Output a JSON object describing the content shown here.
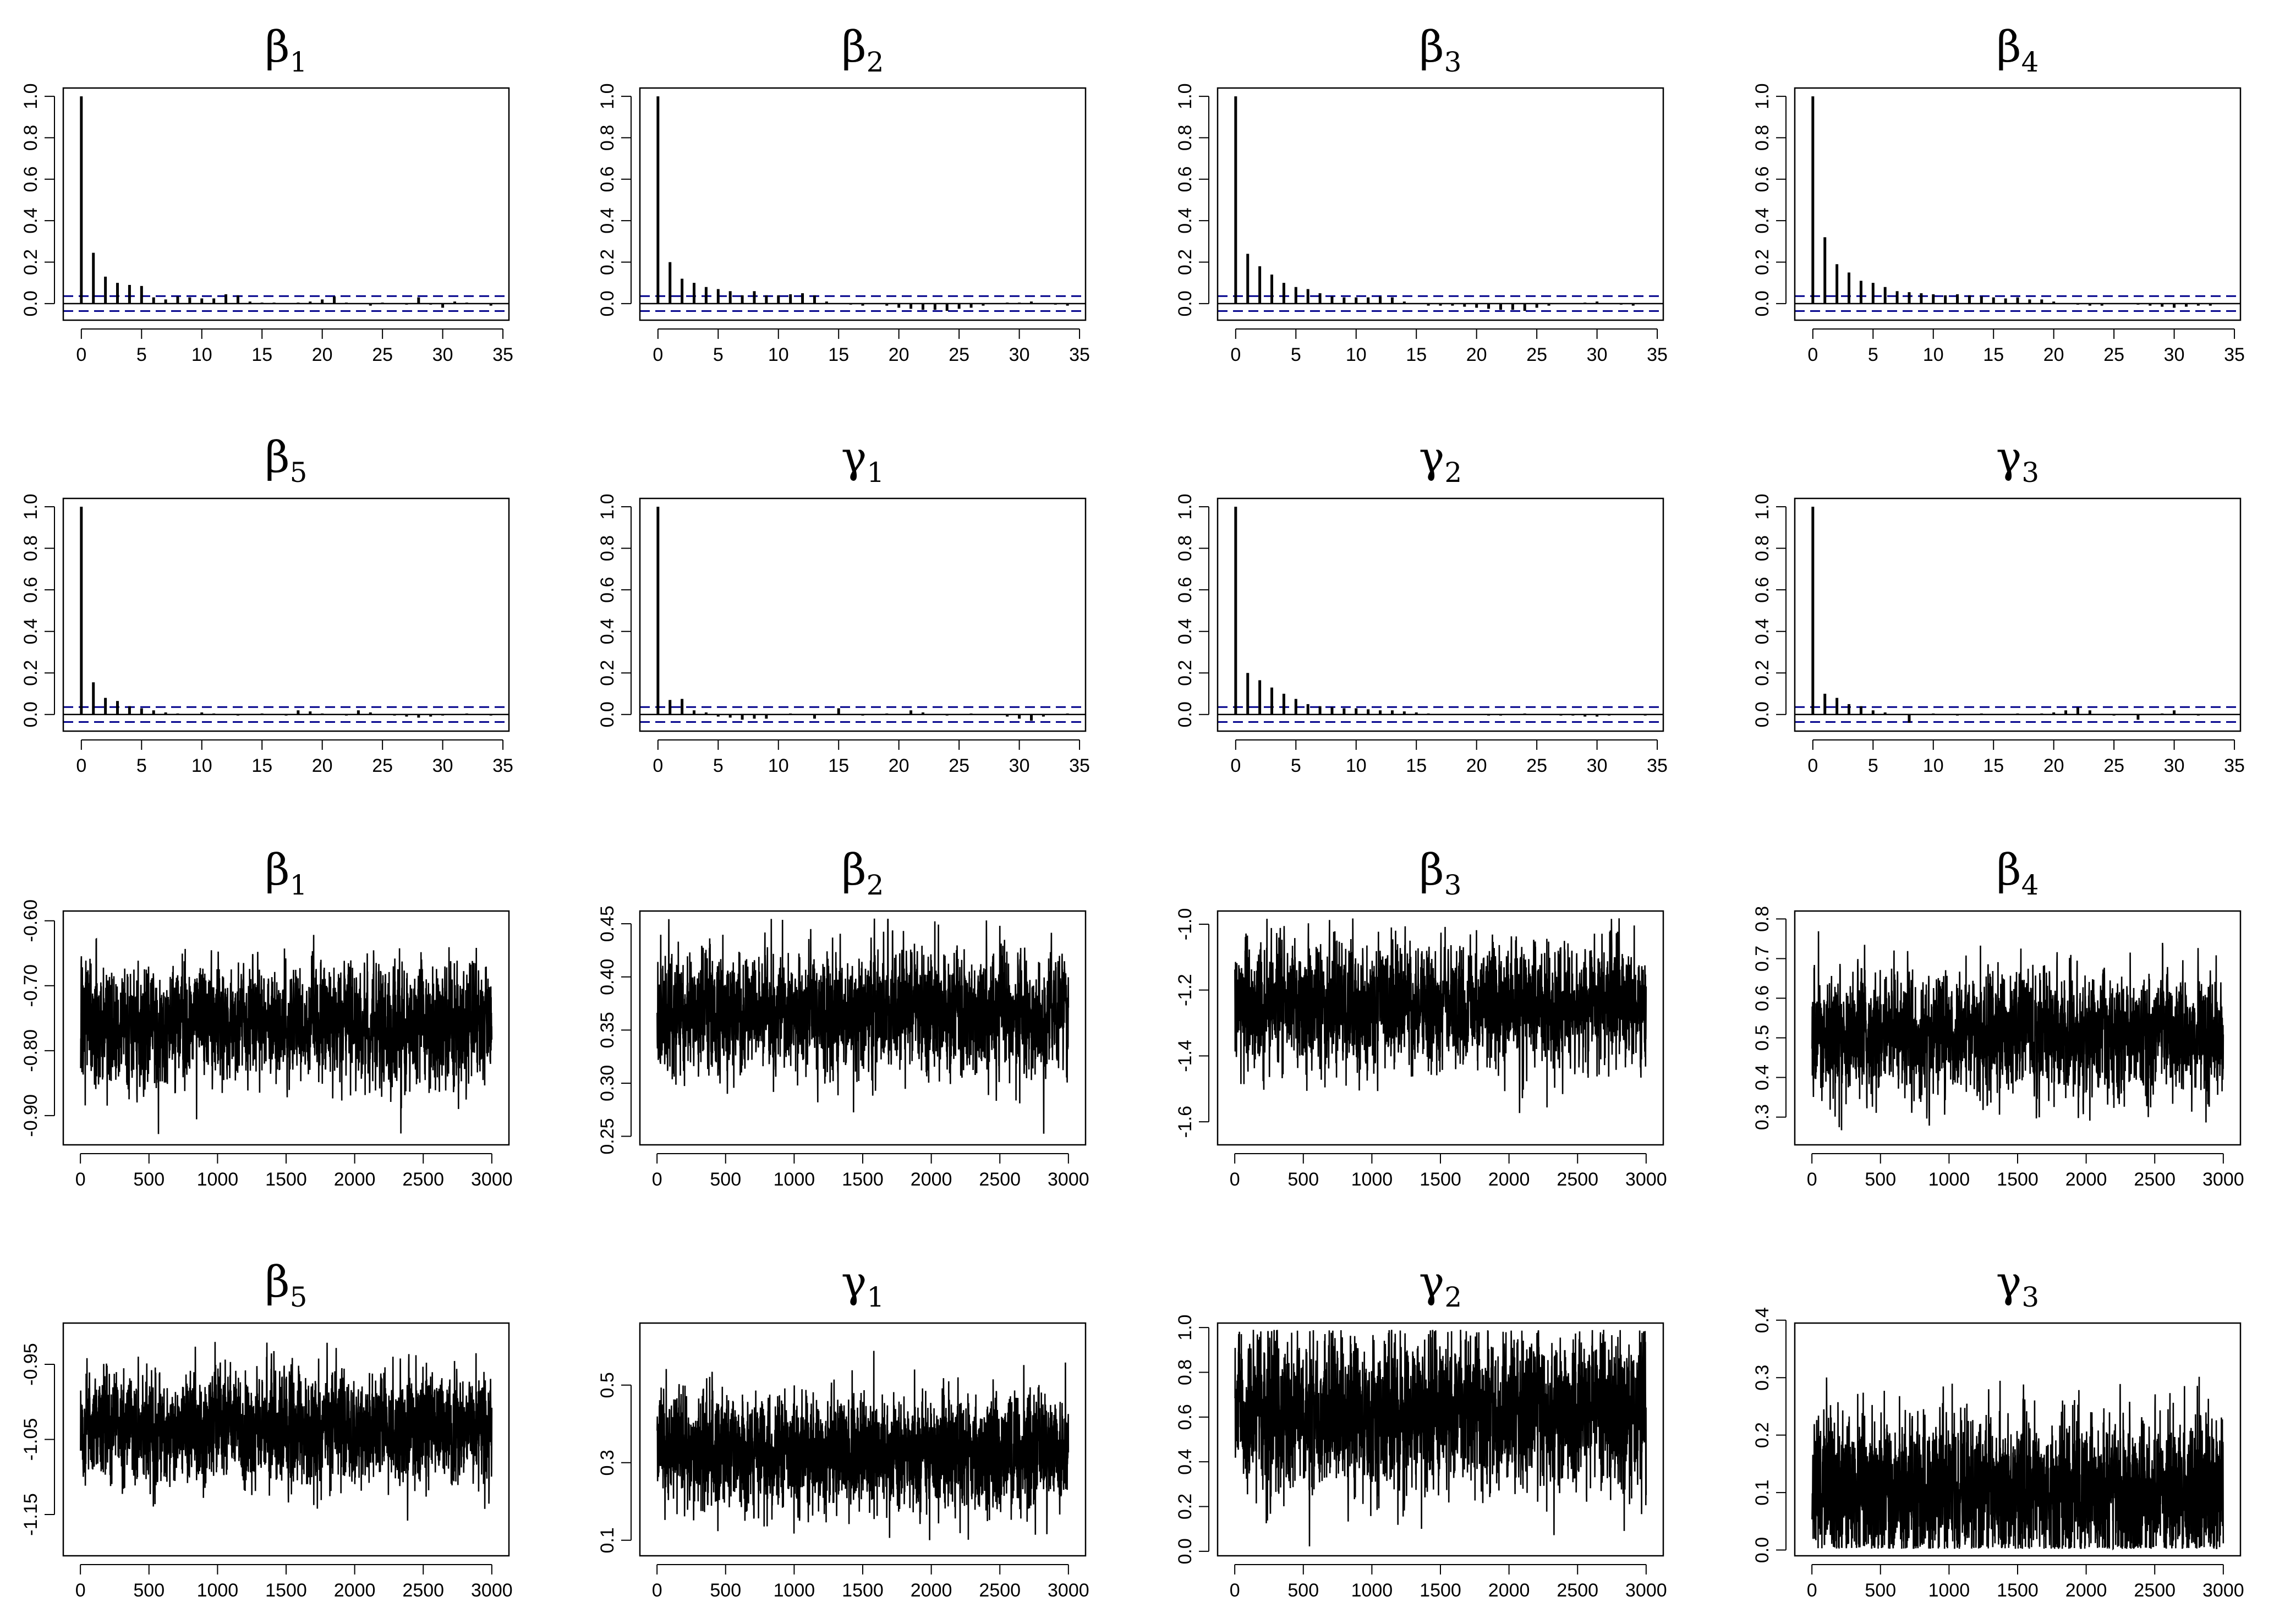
{
  "colors": {
    "line": "#000000",
    "ci": "#00008b",
    "background": "#ffffff"
  },
  "chart_data": [
    {
      "type": "bar",
      "kind": "acf",
      "title": "β",
      "subscript": "1",
      "x_ticks": [
        "0",
        "5",
        "10",
        "15",
        "20",
        "25",
        "30",
        "35"
      ],
      "y_ticks": [
        "0.0",
        "0.2",
        "0.4",
        "0.6",
        "0.8",
        "1.0"
      ],
      "xlim": [
        -1.5,
        35.5
      ],
      "ylim": [
        -0.08,
        1.04
      ],
      "ci": 0.036,
      "values": [
        1.0,
        0.245,
        0.13,
        0.1,
        0.09,
        0.085,
        0.03,
        0.02,
        0.035,
        0.03,
        0.025,
        0.025,
        0.045,
        0.04,
        0.01,
        0.005,
        0.005,
        0.0,
        0.005,
        0.01,
        0.02,
        0.035,
        0.005,
        0.0,
        -0.01,
        0.005,
        0.0,
        -0.005,
        0.03,
        -0.005,
        -0.02,
        0.01,
        0.005,
        0.0,
        -0.01,
        0.0
      ]
    },
    {
      "type": "bar",
      "kind": "acf",
      "title": "β",
      "subscript": "2",
      "x_ticks": [
        "0",
        "5",
        "10",
        "15",
        "20",
        "25",
        "30",
        "35"
      ],
      "y_ticks": [
        "0.0",
        "0.2",
        "0.4",
        "0.6",
        "0.8",
        "1.0"
      ],
      "xlim": [
        -1.5,
        35.5
      ],
      "ylim": [
        -0.08,
        1.04
      ],
      "ci": 0.036,
      "values": [
        1.0,
        0.2,
        0.12,
        0.1,
        0.08,
        0.07,
        0.06,
        0.04,
        0.06,
        0.04,
        0.04,
        0.045,
        0.05,
        0.04,
        0.01,
        0.0,
        -0.005,
        -0.01,
        0.0,
        -0.01,
        -0.02,
        -0.025,
        -0.03,
        -0.03,
        -0.035,
        -0.025,
        -0.02,
        -0.01,
        0.0,
        0.005,
        0.005,
        0.01,
        0.0,
        -0.005,
        -0.01,
        0.0
      ]
    },
    {
      "type": "bar",
      "kind": "acf",
      "title": "β",
      "subscript": "3",
      "x_ticks": [
        "0",
        "5",
        "10",
        "15",
        "20",
        "25",
        "30",
        "35"
      ],
      "y_ticks": [
        "0.0",
        "0.2",
        "0.4",
        "0.6",
        "0.8",
        "1.0"
      ],
      "xlim": [
        -1.5,
        35.5
      ],
      "ylim": [
        -0.08,
        1.04
      ],
      "ci": 0.036,
      "values": [
        1.0,
        0.24,
        0.18,
        0.14,
        0.1,
        0.08,
        0.07,
        0.05,
        0.035,
        0.03,
        0.03,
        0.03,
        0.035,
        0.03,
        0.01,
        0.0,
        -0.01,
        -0.01,
        -0.01,
        -0.015,
        -0.02,
        -0.025,
        -0.03,
        -0.03,
        -0.035,
        -0.02,
        -0.01,
        0.0,
        0.0,
        0.005,
        0.01,
        0.0,
        -0.005,
        -0.01,
        0.0,
        0.0
      ]
    },
    {
      "type": "bar",
      "kind": "acf",
      "title": "β",
      "subscript": "4",
      "x_ticks": [
        "0",
        "5",
        "10",
        "15",
        "20",
        "25",
        "30",
        "35"
      ],
      "y_ticks": [
        "0.0",
        "0.2",
        "0.4",
        "0.6",
        "0.8",
        "1.0"
      ],
      "xlim": [
        -1.5,
        35.5
      ],
      "ylim": [
        -0.08,
        1.04
      ],
      "ci": 0.036,
      "values": [
        1.0,
        0.32,
        0.19,
        0.15,
        0.11,
        0.1,
        0.08,
        0.06,
        0.055,
        0.05,
        0.045,
        0.04,
        0.045,
        0.04,
        0.035,
        0.03,
        0.025,
        0.03,
        0.02,
        0.02,
        0.01,
        0.0,
        -0.005,
        -0.01,
        -0.01,
        0.0,
        0.0,
        -0.005,
        -0.01,
        -0.015,
        -0.02,
        -0.015,
        -0.01,
        -0.01,
        0.0,
        0.0
      ]
    },
    {
      "type": "bar",
      "kind": "acf",
      "title": "β",
      "subscript": "5",
      "x_ticks": [
        "0",
        "5",
        "10",
        "15",
        "20",
        "25",
        "30",
        "35"
      ],
      "y_ticks": [
        "0.0",
        "0.2",
        "0.4",
        "0.6",
        "0.8",
        "1.0"
      ],
      "xlim": [
        -1.5,
        35.5
      ],
      "ylim": [
        -0.08,
        1.04
      ],
      "ci": 0.036,
      "values": [
        1.0,
        0.155,
        0.08,
        0.065,
        0.04,
        0.03,
        0.02,
        0.01,
        0.005,
        0.0,
        0.01,
        0.005,
        0.0,
        -0.005,
        0.0,
        0.005,
        0.0,
        -0.005,
        0.02,
        0.015,
        0.005,
        0.0,
        -0.005,
        0.02,
        0.01,
        0.0,
        -0.005,
        -0.01,
        -0.015,
        -0.01,
        -0.005,
        0.0,
        0.005,
        0.0,
        -0.005,
        0.0
      ]
    },
    {
      "type": "bar",
      "kind": "acf",
      "title": "γ",
      "subscript": "1",
      "x_ticks": [
        "0",
        "5",
        "10",
        "15",
        "20",
        "25",
        "30",
        "35"
      ],
      "y_ticks": [
        "0.0",
        "0.2",
        "0.4",
        "0.6",
        "0.8",
        "1.0"
      ],
      "xlim": [
        -1.5,
        35.5
      ],
      "ylim": [
        -0.08,
        1.04
      ],
      "ci": 0.036,
      "values": [
        1.0,
        0.07,
        0.075,
        0.02,
        0.01,
        -0.01,
        -0.015,
        -0.025,
        -0.02,
        -0.02,
        0.0,
        0.005,
        0.0,
        -0.02,
        0.0,
        0.03,
        0.0,
        -0.005,
        0.0,
        0.005,
        0.0,
        0.02,
        0.01,
        0.0,
        -0.005,
        0.0,
        0.005,
        0.0,
        0.0,
        -0.01,
        -0.02,
        -0.03,
        -0.01,
        0.0,
        0.005,
        0.0
      ]
    },
    {
      "type": "bar",
      "kind": "acf",
      "title": "γ",
      "subscript": "2",
      "x_ticks": [
        "0",
        "5",
        "10",
        "15",
        "20",
        "25",
        "30",
        "35"
      ],
      "y_ticks": [
        "0.0",
        "0.2",
        "0.4",
        "0.6",
        "0.8",
        "1.0"
      ],
      "xlim": [
        -1.5,
        35.5
      ],
      "ylim": [
        -0.08,
        1.04
      ],
      "ci": 0.036,
      "values": [
        1.0,
        0.2,
        0.165,
        0.13,
        0.1,
        0.075,
        0.05,
        0.04,
        0.035,
        0.03,
        0.03,
        0.025,
        0.02,
        0.02,
        0.015,
        0.01,
        0.005,
        0.0,
        0.0,
        0.0,
        0.0,
        -0.005,
        -0.005,
        0.0,
        0.005,
        0.0,
        0.0,
        -0.005,
        -0.005,
        -0.01,
        -0.01,
        -0.005,
        0.0,
        0.0,
        -0.005,
        0.0
      ]
    },
    {
      "type": "bar",
      "kind": "acf",
      "title": "γ",
      "subscript": "3",
      "x_ticks": [
        "0",
        "5",
        "10",
        "15",
        "20",
        "25",
        "30",
        "35"
      ],
      "y_ticks": [
        "0.0",
        "0.2",
        "0.4",
        "0.6",
        "0.8",
        "1.0"
      ],
      "xlim": [
        -1.5,
        35.5
      ],
      "ylim": [
        -0.08,
        1.04
      ],
      "ci": 0.036,
      "values": [
        1.0,
        0.1,
        0.08,
        0.05,
        0.04,
        0.02,
        0.01,
        0.0,
        -0.04,
        0.0,
        0.005,
        0.0,
        -0.005,
        0.0,
        0.005,
        0.0,
        0.0,
        0.005,
        0.0,
        0.005,
        0.01,
        0.02,
        0.035,
        0.02,
        0.0,
        -0.005,
        0.0,
        -0.025,
        0.0,
        0.005,
        0.02,
        0.0,
        -0.005,
        0.0,
        0.0,
        0.0
      ]
    },
    {
      "type": "line",
      "kind": "trace",
      "title": "β",
      "subscript": "1",
      "x_ticks": [
        "0",
        "500",
        "1000",
        "1500",
        "2000",
        "2500",
        "3000"
      ],
      "y_ticks": [
        "-0.60",
        "-0.70",
        "-0.80",
        "-0.90"
      ],
      "xlim": [
        -125,
        3125
      ],
      "ylim": [
        -0.945,
        -0.585
      ],
      "n": 3000,
      "mean": -0.76,
      "sd": 0.043,
      "phi": 0.3,
      "range": [
        -0.93,
        -0.59
      ]
    },
    {
      "type": "line",
      "kind": "trace",
      "title": "β",
      "subscript": "2",
      "x_ticks": [
        "0",
        "500",
        "1000",
        "1500",
        "2000",
        "2500",
        "3000"
      ],
      "y_ticks": [
        "0.25",
        "0.30",
        "0.35",
        "0.40",
        "0.45"
      ],
      "xlim": [
        -125,
        3125
      ],
      "ylim": [
        0.242,
        0.462
      ],
      "n": 3000,
      "mean": 0.365,
      "sd": 0.028,
      "phi": 0.3,
      "range": [
        0.25,
        0.455
      ]
    },
    {
      "type": "line",
      "kind": "trace",
      "title": "β",
      "subscript": "3",
      "x_ticks": [
        "0",
        "500",
        "1000",
        "1500",
        "2000",
        "2500",
        "3000"
      ],
      "y_ticks": [
        "-1.0",
        "-1.2",
        "-1.4",
        "-1.6"
      ],
      "xlim": [
        -125,
        3125
      ],
      "ylim": [
        -1.67,
        -0.96
      ],
      "n": 3000,
      "mean": -1.25,
      "sd": 0.09,
      "phi": 0.3,
      "range": [
        -1.65,
        -0.98
      ]
    },
    {
      "type": "line",
      "kind": "trace",
      "title": "β",
      "subscript": "4",
      "x_ticks": [
        "0",
        "500",
        "1000",
        "1500",
        "2000",
        "2500",
        "3000"
      ],
      "y_ticks": [
        "0.3",
        "0.4",
        "0.5",
        "0.6",
        "0.7",
        "0.8"
      ],
      "xlim": [
        -125,
        3125
      ],
      "ylim": [
        0.23,
        0.82
      ],
      "n": 3000,
      "mean": 0.51,
      "sd": 0.075,
      "phi": 0.35,
      "range": [
        0.26,
        0.8
      ]
    },
    {
      "type": "line",
      "kind": "trace",
      "title": "β",
      "subscript": "5",
      "x_ticks": [
        "0",
        "500",
        "1000",
        "1500",
        "2000",
        "2500",
        "3000"
      ],
      "y_ticks": [
        "-0.95",
        "-1.05",
        "-1.15"
      ],
      "xlim": [
        -125,
        3125
      ],
      "ylim": [
        -1.205,
        -0.895
      ],
      "n": 3000,
      "mean": -1.035,
      "sd": 0.035,
      "phi": 0.2,
      "range": [
        -1.19,
        -0.92
      ]
    },
    {
      "type": "line",
      "kind": "trace",
      "title": "γ",
      "subscript": "1",
      "x_ticks": [
        "0",
        "500",
        "1000",
        "1500",
        "2000",
        "2500",
        "3000"
      ],
      "y_ticks": [
        "0.1",
        "0.3",
        "0.5"
      ],
      "xlim": [
        -125,
        3125
      ],
      "ylim": [
        0.06,
        0.66
      ],
      "n": 3000,
      "mean": 0.33,
      "sd": 0.07,
      "phi": 0.1,
      "range": [
        0.1,
        0.65
      ]
    },
    {
      "type": "line",
      "kind": "trace",
      "title": "γ",
      "subscript": "2",
      "x_ticks": [
        "0",
        "500",
        "1000",
        "1500",
        "2000",
        "2500",
        "3000"
      ],
      "y_ticks": [
        "0.0",
        "0.2",
        "0.4",
        "0.6",
        "0.8",
        "1.0"
      ],
      "xlim": [
        -125,
        3125
      ],
      "ylim": [
        -0.02,
        1.02
      ],
      "n": 3000,
      "mean": 0.62,
      "sd": 0.17,
      "phi": 0.25,
      "range": [
        0.01,
        0.99
      ]
    },
    {
      "type": "line",
      "kind": "trace",
      "title": "γ",
      "subscript": "3",
      "x_ticks": [
        "0",
        "500",
        "1000",
        "1500",
        "2000",
        "2500",
        "3000"
      ],
      "y_ticks": [
        "0.0",
        "0.1",
        "0.2",
        "0.3",
        "0.4"
      ],
      "xlim": [
        -125,
        3125
      ],
      "ylim": [
        -0.01,
        0.395
      ],
      "n": 3000,
      "mean": 0.1,
      "sd": 0.065,
      "phi": 0.15,
      "range": [
        0.002,
        0.39
      ]
    }
  ]
}
